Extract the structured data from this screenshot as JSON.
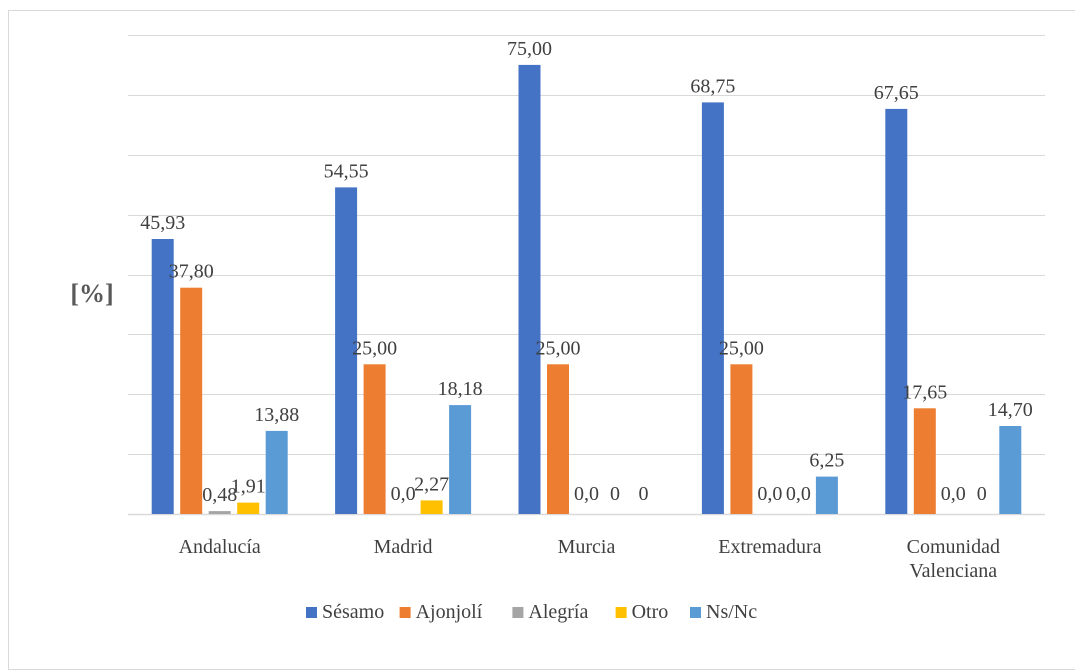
{
  "chart_data": {
    "type": "bar",
    "title": "",
    "xlabel": "",
    "ylabel": "[%]",
    "ylim": [
      0,
      80
    ],
    "grid": true,
    "legend_position": "bottom",
    "categories": [
      "Andalucía",
      "Madrid",
      "Murcia",
      "Extremadura",
      "Comunidad Valenciana"
    ],
    "category_label_lines": [
      [
        "Andalucía"
      ],
      [
        "Madrid"
      ],
      [
        "Murcia"
      ],
      [
        "Extremadura"
      ],
      [
        "Comunidad",
        "Valenciana"
      ]
    ],
    "series": [
      {
        "name": "Sésamo",
        "color": "#4472c4",
        "values": [
          45.93,
          54.55,
          75.0,
          68.75,
          67.65
        ],
        "labels": [
          "45,93",
          "54,55",
          "75,00",
          "68,75",
          "67,65"
        ]
      },
      {
        "name": "Ajonjolí",
        "color": "#ed7d31",
        "values": [
          37.8,
          25.0,
          25.0,
          25.0,
          17.65
        ],
        "labels": [
          "37,80",
          "25,00",
          "25,00",
          "25,00",
          "17,65"
        ]
      },
      {
        "name": "Alegría",
        "color": "#a5a5a5",
        "values": [
          0.48,
          0,
          0,
          0,
          0
        ],
        "labels": [
          "0,48",
          "0,0",
          "0,0",
          "0,0",
          "0,0"
        ]
      },
      {
        "name": "Otro",
        "color": "#ffc000",
        "values": [
          1.91,
          2.27,
          0,
          0,
          0
        ],
        "labels": [
          "1,91",
          "2,27",
          "0",
          "0,0",
          "0"
        ]
      },
      {
        "name": "Ns/Nc",
        "color": "#5b9bd5",
        "values": [
          13.88,
          18.18,
          0,
          6.25,
          14.7
        ],
        "labels": [
          "13,88",
          "18,18",
          "0",
          "6,25",
          "14,70"
        ]
      }
    ]
  }
}
